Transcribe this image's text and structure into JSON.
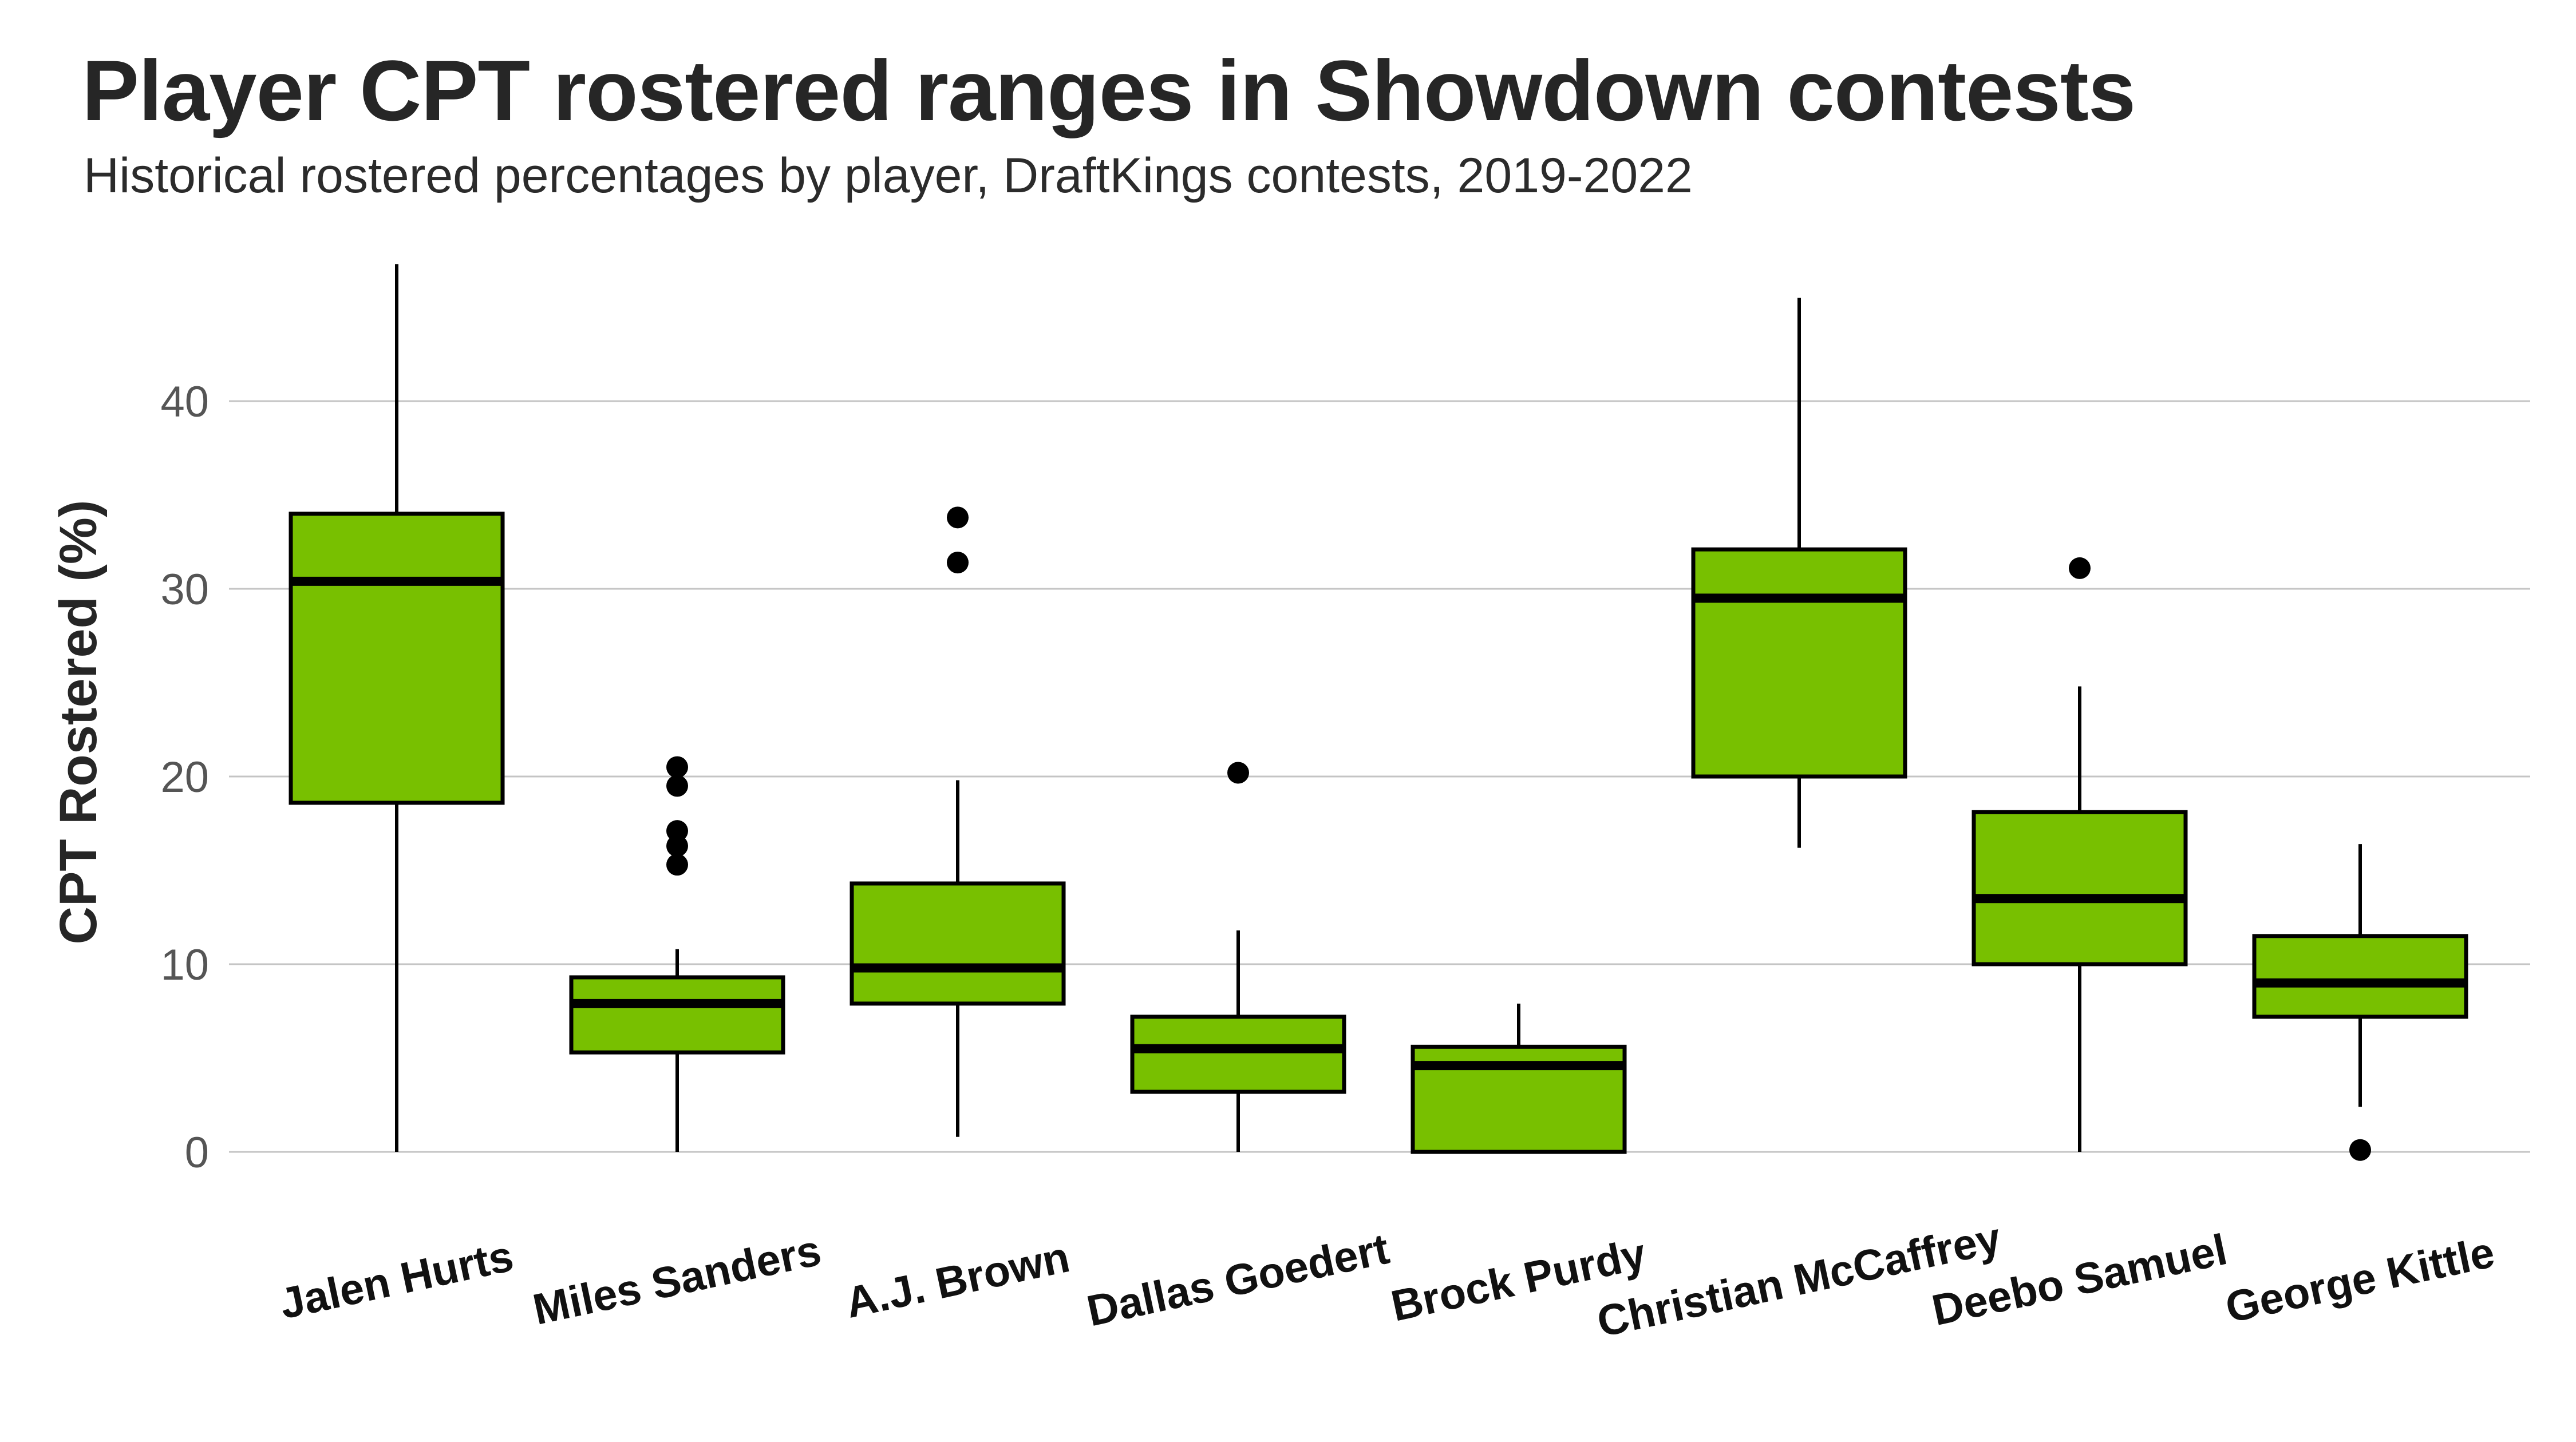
{
  "chart_data": {
    "type": "boxplot",
    "title": "Player CPT rostered ranges in Showdown contests",
    "subtitle": "Historical rostered percentages by player, DraftKings contests, 2019-2022",
    "xlabel": "",
    "ylabel": "CPT Rostered (%)",
    "ylim": [
      0,
      47
    ],
    "yticks": [
      0,
      10,
      20,
      30,
      40
    ],
    "grid": true,
    "legend": "none",
    "box_color": "#78c000",
    "categories": [
      "Jalen Hurts",
      "Miles Sanders",
      "A.J. Brown",
      "Dallas Goedert",
      "Brock Purdy",
      "Christian McCaffrey",
      "Deebo Samuel",
      "George Kittle"
    ],
    "boxes": [
      {
        "name": "Jalen Hurts",
        "whisker_low": 0,
        "q1": 18.6,
        "median": 30.4,
        "q3": 34.0,
        "whisker_high": 47.3,
        "outliers": []
      },
      {
        "name": "Miles Sanders",
        "whisker_low": 0,
        "q1": 5.3,
        "median": 7.9,
        "q3": 9.3,
        "whisker_high": 10.8,
        "outliers": [
          15.3,
          16.3,
          17.1,
          19.5,
          20.5
        ]
      },
      {
        "name": "A.J. Brown",
        "whisker_low": 0.8,
        "q1": 7.9,
        "median": 9.8,
        "q3": 14.3,
        "whisker_high": 19.8,
        "outliers": [
          31.4,
          33.8
        ]
      },
      {
        "name": "Dallas Goedert",
        "whisker_low": 0,
        "q1": 3.2,
        "median": 5.5,
        "q3": 7.2,
        "whisker_high": 11.8,
        "outliers": [
          20.2
        ]
      },
      {
        "name": "Brock Purdy",
        "whisker_low": 0,
        "q1": 0,
        "median": 4.6,
        "q3": 5.6,
        "whisker_high": 7.9,
        "outliers": []
      },
      {
        "name": "Christian McCaffrey",
        "whisker_low": 16.2,
        "q1": 20.0,
        "median": 29.5,
        "q3": 32.1,
        "whisker_high": 45.5,
        "outliers": []
      },
      {
        "name": "Deebo Samuel",
        "whisker_low": 0,
        "q1": 10.0,
        "median": 13.5,
        "q3": 18.1,
        "whisker_high": 24.8,
        "outliers": [
          31.1
        ]
      },
      {
        "name": "George Kittle",
        "whisker_low": 2.4,
        "q1": 7.2,
        "median": 9.0,
        "q3": 11.5,
        "whisker_high": 16.4,
        "outliers": [
          0.1
        ]
      }
    ]
  }
}
